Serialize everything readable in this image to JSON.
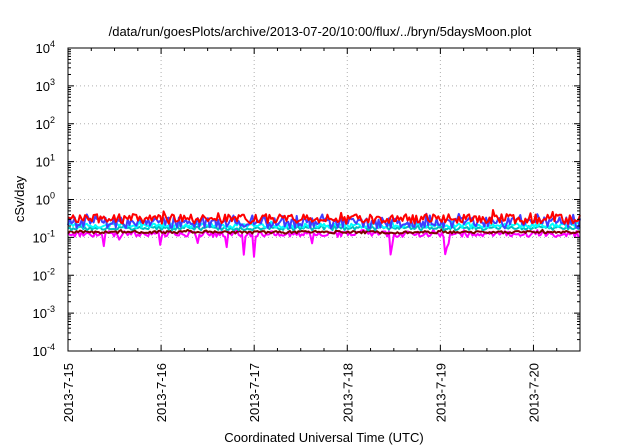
{
  "chart_data": {
    "type": "line",
    "title": "/data/run/goesPlots/archive/2013-07-20/10:00/flux/../bryn/5daysMoon.plot",
    "xlabel": "Coordinated Universal Time (UTC)",
    "ylabel": "cSv/day",
    "y_scale": "log",
    "ylim": [
      0.0001,
      10000
    ],
    "xlim": [
      "2013-07-15",
      "2013-07-20 12:00"
    ],
    "grid": true,
    "x_ticks": [
      "2013-7-15",
      "2013-7-16",
      "2013-7-17",
      "2013-7-18",
      "2013-7-19",
      "2013-7-20"
    ],
    "y_ticks": [
      {
        "base": "10",
        "exp": "4"
      },
      {
        "base": "10",
        "exp": "3"
      },
      {
        "base": "10",
        "exp": "2"
      },
      {
        "base": "10",
        "exp": "1"
      },
      {
        "base": "10",
        "exp": "0"
      },
      {
        "base": "10",
        "exp": "-1"
      },
      {
        "base": "10",
        "exp": "-2"
      },
      {
        "base": "10",
        "exp": "-3"
      },
      {
        "base": "10",
        "exp": "-4"
      }
    ],
    "series": [
      {
        "color": "#ff00ff",
        "level": 0.12,
        "jitter": 0.18,
        "dips": true
      },
      {
        "color": "#7f0000",
        "level": 0.135,
        "jitter": 0.08,
        "dips": false
      },
      {
        "color": "#00bfbf",
        "level": 0.17,
        "jitter": 0.12,
        "dips": false
      },
      {
        "color": "#00ffff",
        "level": 0.2,
        "jitter": 0.14,
        "dips": false
      },
      {
        "color": "#3f3fff",
        "level": 0.24,
        "jitter": 0.35,
        "dips": false
      },
      {
        "color": "#ff0000",
        "level": 0.3,
        "jitter": 0.3,
        "dips": false
      }
    ]
  }
}
